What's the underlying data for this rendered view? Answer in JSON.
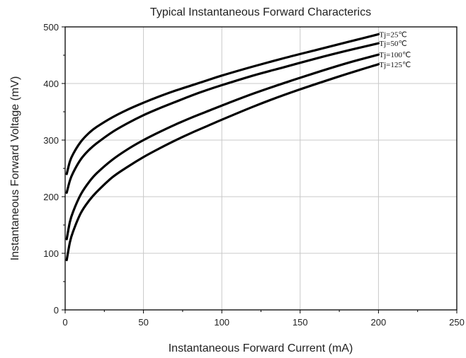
{
  "chart_data": {
    "type": "line",
    "title": "Typical Instantaneous Forward Characterics",
    "xlabel": "Instantaneous Forward Current (mA)",
    "ylabel": "Instantaneous  Forward Voltage (mV)",
    "xlim": [
      0,
      250
    ],
    "ylim": [
      0,
      500
    ],
    "xticks": [
      0,
      50,
      100,
      150,
      200,
      250
    ],
    "yticks": [
      0,
      100,
      200,
      300,
      400,
      500
    ],
    "grid": true,
    "series": [
      {
        "name": "Tj=25℃",
        "x": [
          1,
          3,
          5,
          10,
          15,
          20,
          30,
          40,
          50,
          60,
          70,
          80,
          90,
          100,
          120,
          140,
          160,
          180,
          200
        ],
        "y": [
          240,
          262,
          275,
          297,
          312,
          323,
          340,
          354,
          366,
          377,
          387,
          396,
          405,
          414,
          430,
          445,
          459,
          473,
          487
        ]
      },
      {
        "name": "Tj=50℃",
        "x": [
          1,
          3,
          5,
          10,
          15,
          20,
          30,
          40,
          50,
          60,
          70,
          80,
          90,
          100,
          120,
          140,
          160,
          180,
          200
        ],
        "y": [
          207,
          228,
          242,
          266,
          282,
          294,
          314,
          330,
          344,
          356,
          367,
          378,
          388,
          397,
          414,
          429,
          444,
          458,
          471
        ]
      },
      {
        "name": "Tj=100℃",
        "x": [
          1,
          3,
          5,
          10,
          15,
          20,
          30,
          40,
          50,
          60,
          70,
          80,
          90,
          100,
          120,
          140,
          160,
          180,
          200
        ],
        "y": [
          125,
          155,
          173,
          204,
          225,
          241,
          265,
          284,
          300,
          314,
          327,
          339,
          350,
          361,
          382,
          401,
          419,
          436,
          451
        ]
      },
      {
        "name": "Tj=125℃",
        "x": [
          1,
          3,
          5,
          10,
          15,
          20,
          30,
          40,
          50,
          60,
          70,
          80,
          90,
          100,
          120,
          140,
          160,
          180,
          200
        ],
        "y": [
          88,
          119,
          138,
          171,
          192,
          208,
          234,
          253,
          270,
          285,
          299,
          312,
          324,
          336,
          359,
          380,
          399,
          417,
          434
        ]
      }
    ]
  }
}
